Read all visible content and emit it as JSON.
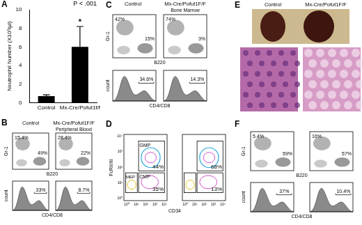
{
  "chart_data": {
    "type": "bar",
    "panel_label": "A",
    "categories": [
      "Control",
      "Mx-Cre/Pofut1f/f"
    ],
    "values": [
      0.7,
      6.0
    ],
    "errors": [
      0.15,
      2.2
    ],
    "color": "#000000",
    "ylabel": "Neutrophil Number (X10³/µl)",
    "ylim": [
      0,
      10
    ],
    "yticks": [
      0,
      2,
      4,
      6,
      8,
      10
    ],
    "grid": false,
    "annotations": [
      "P < .001",
      "*"
    ]
  },
  "panels": {
    "B": {
      "label": "B",
      "headers": [
        "Control",
        "Mx-Cre/Pofut1F/F"
      ],
      "tissue": "Peripheral Blood",
      "dot_plot": {
        "y_label": "Gr-1",
        "x_label": "B220",
        "gates": [
          [
            "15.4%",
            "49%"
          ],
          [
            "28.4%",
            "22%"
          ]
        ]
      },
      "histogram": {
        "y_label": "count",
        "x_label": "CD4/CD8",
        "gates": [
          "33%",
          "8.7%"
        ]
      }
    },
    "C": {
      "label": "C",
      "headers": [
        "Control",
        "Mx-Cre/Pofut1F/F"
      ],
      "tissue": "Bone Marrow",
      "dot_plot": {
        "y_label": "Gr-1",
        "x_label": "B220",
        "gates": [
          [
            "42%",
            "15%"
          ],
          [
            "74%",
            "3%"
          ]
        ]
      },
      "histogram": {
        "y_label": "count",
        "x_label": "CD4/CD8",
        "gates": [
          "34.6%",
          "14.3%"
        ]
      }
    },
    "D": {
      "label": "D",
      "y_label": "FcRII/III",
      "x_label": "CD34",
      "gate_names": [
        "GMP",
        "CMP",
        "MEP"
      ],
      "gates": [
        [
          "44%",
          "35%"
        ],
        [
          "68%",
          "13%"
        ]
      ],
      "ticks": [
        "10⁰",
        "10¹",
        "10²",
        "10³",
        "10⁴"
      ]
    },
    "E": {
      "label": "E",
      "headers": [
        "Control",
        "Mx-Cre/Pofut1F/F"
      ]
    },
    "F": {
      "label": "F",
      "dot_plot": {
        "y_label": "Gr-1",
        "x_label": "B220",
        "gates": [
          [
            "5.4%",
            "59%"
          ],
          [
            "16%",
            "57%"
          ]
        ]
      },
      "histogram": {
        "y_label": "count",
        "x_label": "CD4/CD8",
        "gates": [
          "37%",
          "10.4%"
        ]
      }
    }
  }
}
